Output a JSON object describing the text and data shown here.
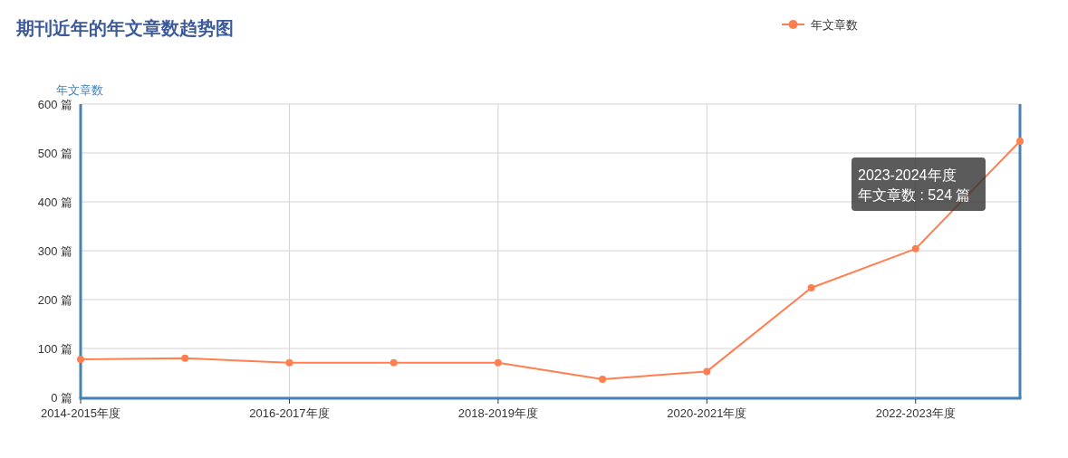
{
  "chart_data": {
    "type": "line",
    "title": "期刊近年的年文章数趋势图",
    "ylabel": "年文章数",
    "categories": [
      "2014-2015年度",
      null,
      "2016-2017年度",
      null,
      "2018-2019年度",
      null,
      "2020-2021年度",
      null,
      "2022-2023年度",
      null
    ],
    "series": [
      {
        "name": "年文章数",
        "color": "#ff7f50",
        "values": [
          78,
          80,
          71,
          71,
          71,
          37,
          53,
          224,
          304,
          524
        ]
      }
    ],
    "ylim": [
      0,
      600
    ],
    "yticks": [
      {
        "value": 0,
        "label": "0 篇"
      },
      {
        "value": 100,
        "label": "100 篇"
      },
      {
        "value": 200,
        "label": "200 篇"
      },
      {
        "value": 300,
        "label": "300 篇"
      },
      {
        "value": 400,
        "label": "400 篇"
      },
      {
        "value": 500,
        "label": "500 篇"
      },
      {
        "value": 600,
        "label": "600 篇"
      }
    ],
    "grid": true,
    "legend": "top right",
    "marker": "circle",
    "line_style": "solid",
    "annotations": [
      "2023-2024年度",
      "年文章数 : 524 篇"
    ]
  }
}
